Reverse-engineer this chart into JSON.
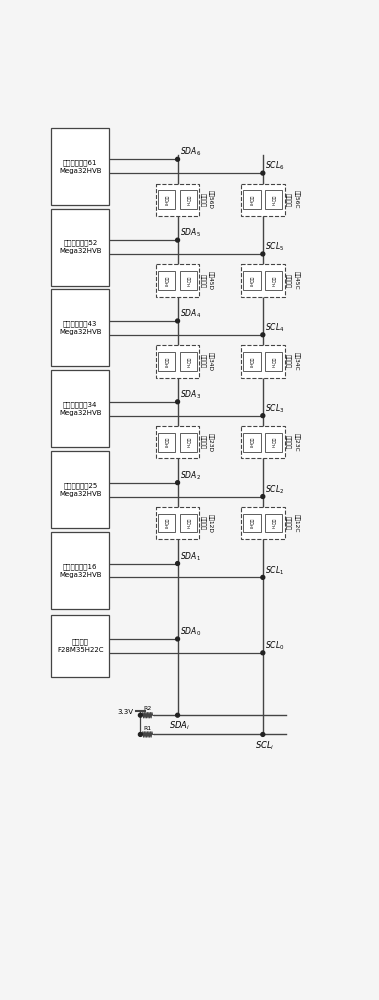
{
  "bg_color": "#f5f5f5",
  "lc": "#444444",
  "chip_labels": [
    "电池管理芯片61\nMega32HVB",
    "电池管理芯片52\nMega32HVB",
    "电池管理芯片43\nMega32HVB",
    "电池管理芯片34\nMega32HVB",
    "电池管理芯片25\nMega32HVB",
    "电池管理芯片16\nMega32HVB"
  ],
  "master_label": "主控制器\nF28M35H22C",
  "sda_labels": [
    "SDA",
    "SDA",
    "SDA",
    "SDA",
    "SDA",
    "SDA",
    "SDA"
  ],
  "sda_subs": [
    "6",
    "5",
    "4",
    "3",
    "2",
    "1",
    "0"
  ],
  "scl_labels": [
    "SCL",
    "SCL",
    "SCL",
    "SCL",
    "SCL",
    "SCL",
    "SCL"
  ],
  "scl_subs": [
    "6",
    "5",
    "4",
    "3",
    "2",
    "1",
    "0"
  ],
  "mod_D_labels": [
    "模坥56D",
    "模坥45D",
    "模坥34D",
    "模坥23D",
    "模坥12D"
  ],
  "mod_C_labels": [
    "模坥56C",
    "模坥45C",
    "模坥34C",
    "模坥23C",
    "模坥12C"
  ],
  "lh_text": "LH电路",
  "hl_text": "HL电路",
  "elev_text": "电平迁移",
  "voltage": "3.3V",
  "R1": "R1",
  "R2": "R2",
  "sda_i_label": "SDA",
  "scl_i_label": "SCL",
  "sda_i_sub": "i",
  "scl_i_sub": "i"
}
